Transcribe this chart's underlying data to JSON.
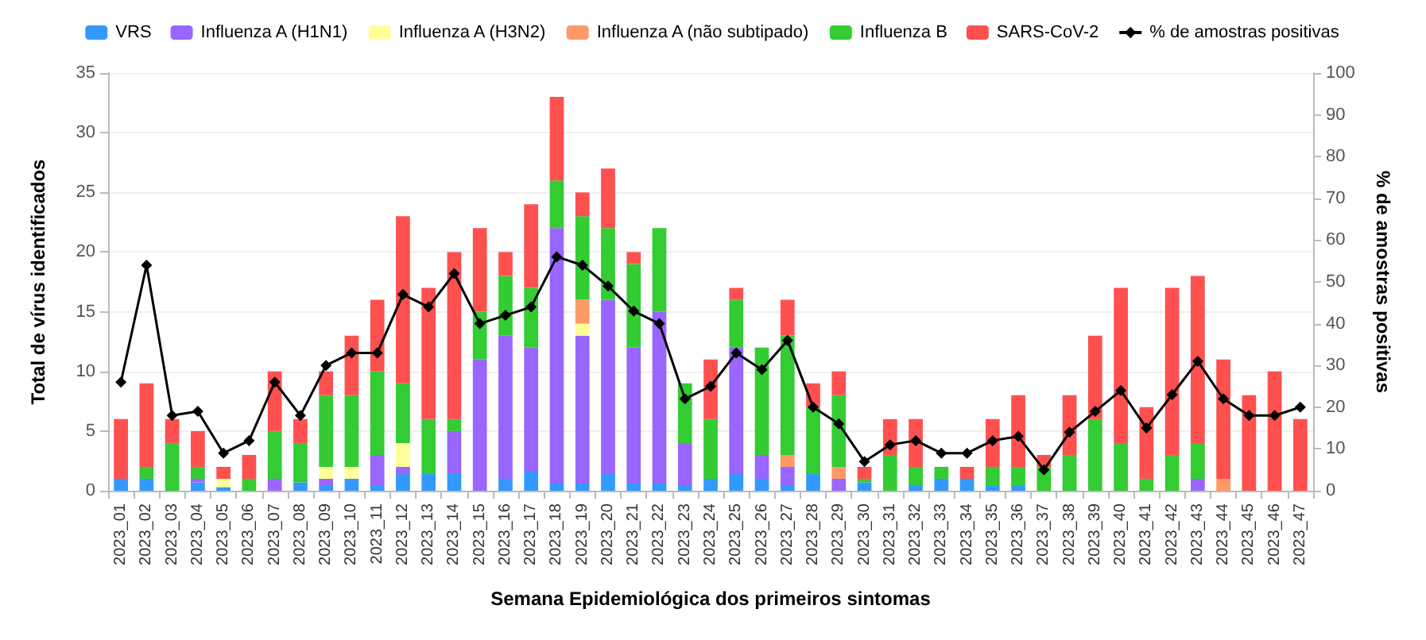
{
  "chart_data": {
    "type": "bar",
    "stacked": true,
    "xlabel": "Semana Epidemiológica dos primeiros sintomas",
    "ylabel": "Total de vírus identificados",
    "y2label": "% de amostras positivas",
    "categories": [
      "2023_01",
      "2023_02",
      "2023_03",
      "2023_04",
      "2023_05",
      "2023_06",
      "2023_07",
      "2023_08",
      "2023_09",
      "2023_10",
      "2023_11",
      "2023_12",
      "2023_13",
      "2023_14",
      "2023_15",
      "2023_16",
      "2023_17",
      "2023_18",
      "2023_19",
      "2023_20",
      "2023_21",
      "2023_22",
      "2023_23",
      "2023_24",
      "2023_25",
      "2023_26",
      "2023_27",
      "2023_28",
      "2023_29",
      "2023_30",
      "2023_31",
      "2023_32",
      "2023_33",
      "2023_34",
      "2023_35",
      "2023_36",
      "2023_37",
      "2023_38",
      "2023_39",
      "2023_40",
      "2023_41",
      "2023_42",
      "2023_43",
      "2023_44",
      "2023_45",
      "2023_46",
      "2023_47"
    ],
    "series": [
      {
        "name": "VRS",
        "color": "#3399ff",
        "values": [
          1,
          1,
          0,
          0.7,
          0.3,
          0,
          0,
          0.7,
          0.4,
          1,
          0.4,
          1.4,
          1.4,
          1.4,
          0,
          1,
          1.6,
          0.6,
          0.6,
          1.4,
          0.6,
          0.6,
          0.4,
          1,
          1.4,
          1,
          0.4,
          1.4,
          0,
          0.7,
          0,
          0.4,
          1,
          1,
          0.4,
          0.4,
          0,
          0,
          0,
          0,
          0,
          0,
          0,
          0,
          0,
          0,
          0
        ]
      },
      {
        "name": "Influenza A (H1N1)",
        "color": "#9966ff",
        "values": [
          0,
          0,
          0,
          0.3,
          0,
          0,
          1,
          0,
          0.6,
          0,
          2.6,
          0.6,
          0,
          3.6,
          11,
          12,
          10.4,
          21.4,
          12.4,
          14.6,
          11.4,
          14.4,
          3.6,
          0,
          10.6,
          2,
          1.6,
          0,
          1,
          0,
          0,
          0,
          0,
          0,
          0,
          0,
          0,
          0,
          0,
          0,
          0,
          0,
          1,
          0,
          0,
          0,
          0
        ]
      },
      {
        "name": "Influenza A (H3N2)",
        "color": "#ffff99",
        "values": [
          0,
          0,
          0,
          0,
          0.7,
          0,
          0,
          0,
          1,
          1,
          0,
          2,
          0,
          0,
          0,
          0,
          0,
          0,
          1,
          0,
          0,
          0,
          0,
          0,
          0,
          0,
          0,
          0,
          0,
          0,
          0,
          0,
          0,
          0,
          0,
          0,
          0,
          0,
          0,
          0,
          0,
          0,
          0,
          0,
          0,
          0,
          0
        ]
      },
      {
        "name": "Influenza A (não subtipado)",
        "color": "#ff9966",
        "values": [
          0,
          0,
          0,
          0,
          0,
          0,
          0,
          0,
          0,
          0,
          0,
          0,
          0,
          0,
          0,
          0,
          0,
          0,
          2,
          0,
          0,
          0,
          0,
          0,
          0,
          0,
          1,
          0,
          1,
          0,
          0,
          0,
          0,
          0,
          0,
          0,
          0,
          0,
          0,
          0,
          0,
          0,
          0,
          1,
          0,
          0,
          0
        ]
      },
      {
        "name": "Influenza B",
        "color": "#33cc33",
        "values": [
          0,
          1,
          4,
          1,
          0,
          1,
          4,
          3.3,
          6,
          6,
          7,
          5,
          4.6,
          1,
          4,
          5,
          5,
          4,
          7,
          6,
          7,
          7,
          5,
          5,
          4,
          9,
          10,
          5.6,
          6,
          0.3,
          3,
          1.6,
          1,
          0,
          1.6,
          1.6,
          2,
          3,
          6,
          4,
          1,
          3,
          3,
          0,
          0,
          0,
          0
        ]
      },
      {
        "name": "SARS-CoV-2",
        "color": "#ff5050",
        "values": [
          5,
          7,
          2,
          3,
          1,
          2,
          5,
          2,
          2,
          5,
          6,
          14,
          11,
          14,
          7,
          2,
          7,
          7,
          2,
          5,
          1,
          0,
          0,
          5,
          1,
          0,
          3,
          2,
          2,
          1,
          3,
          4,
          0,
          1,
          4,
          6,
          1,
          5,
          7,
          13,
          6,
          14,
          14,
          10,
          8,
          10,
          6
        ]
      },
      {
        "name": "% de amostras positivas",
        "type": "line",
        "axis": "y2",
        "color": "#000000",
        "values": [
          26,
          54,
          18,
          19,
          9,
          12,
          26,
          18,
          30,
          33,
          33,
          47,
          44,
          52,
          40,
          42,
          44,
          56,
          54,
          49,
          43,
          40,
          22,
          25,
          33,
          29,
          36,
          20,
          16,
          7,
          11,
          12,
          9,
          9,
          12,
          13,
          5,
          14,
          19,
          24,
          15,
          23,
          31,
          22,
          18,
          18,
          20
        ]
      }
    ],
    "ylim": [
      0,
      35
    ],
    "yticks": [
      0,
      5,
      10,
      15,
      20,
      25,
      30,
      35
    ],
    "y2lim": [
      0,
      100
    ],
    "y2ticks": [
      0,
      10,
      20,
      30,
      40,
      50,
      60,
      70,
      80,
      90,
      100
    ],
    "grid": "y",
    "legend": "top",
    "marker": "diamond",
    "line_style": "solid"
  }
}
